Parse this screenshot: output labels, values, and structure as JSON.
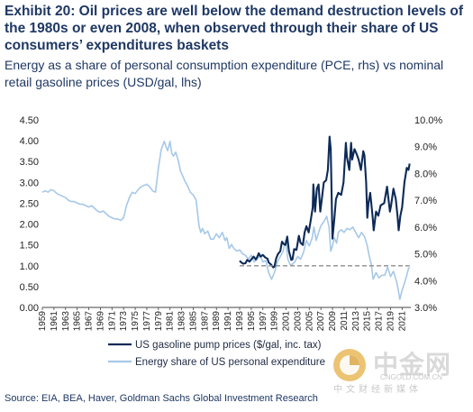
{
  "title": "Exhibit 20: Oil prices are well below the demand destruction levels of the 1980s or even 2008, when observed through their share of US consumers’ expenditures baskets",
  "subtitle": "Energy as a share of personal consumption expenditure (PCE, rhs) vs nominal retail gasoline prices (USD/gal, lhs)",
  "source": "Source: EIA, BEA, Haver, Goldman Sachs Global Investment Research",
  "watermark": {
    "name": "中金网",
    "url": "CNGOLD.COM.CN",
    "tagline": "中文财经新媒体"
  },
  "colors": {
    "gasoline": "#0d2a57",
    "energy_share": "#a6c8e8",
    "reference": "#8c8c8c",
    "title": "#1f3864"
  },
  "chart_data": {
    "type": "line",
    "x_axis": {
      "range": [
        1959,
        2022.5
      ],
      "ticks": [
        1959,
        1961,
        1963,
        1965,
        1967,
        1969,
        1971,
        1973,
        1975,
        1977,
        1979,
        1981,
        1983,
        1985,
        1987,
        1989,
        1991,
        1993,
        1995,
        1997,
        1999,
        2001,
        2003,
        2005,
        2007,
        2009,
        2011,
        2013,
        2015,
        2017,
        2019,
        2021
      ],
      "tick_labels": [
        "1959",
        "1961",
        "1963",
        "1965",
        "1967",
        "1969",
        "1971",
        "1973",
        "1975",
        "1977",
        "1979",
        "1981",
        "1983",
        "1985",
        "1987",
        "1989",
        "1991",
        "1993",
        "1995",
        "1997",
        "1999",
        "2001",
        "2003",
        "2005",
        "2007",
        "2009",
        "2011",
        "2013",
        "2015",
        "2017",
        "2019",
        "2021"
      ]
    },
    "y_left": {
      "range": [
        0,
        4.5
      ],
      "ticks": [
        0,
        0.5,
        1,
        1.5,
        2,
        2.5,
        3,
        3.5,
        4,
        4.5
      ],
      "tick_labels": [
        "0.00",
        "0.50",
        "1.00",
        "1.50",
        "2.00",
        "2.50",
        "3.00",
        "3.50",
        "4.00",
        "4.50"
      ]
    },
    "y_right": {
      "range": [
        3,
        10
      ],
      "ticks": [
        3,
        4,
        5,
        6,
        7,
        8,
        9,
        10
      ],
      "tick_labels": [
        "3.0%",
        "4.0%",
        "5.0%",
        "6.0%",
        "7.0%",
        "8.0%",
        "9.0%",
        "10.0%"
      ]
    },
    "grid": false,
    "legend": {
      "position": "bottom-left",
      "entries": [
        "US gasoline pump prices ($/gal, inc. tax)",
        "Energy share of US personal expenditure"
      ]
    },
    "series": [
      {
        "name": "US gasoline pump prices ($/gal, inc. tax)",
        "axis": "left",
        "x": [
          1993.0,
          1993.3,
          1993.6,
          1994.0,
          1994.3,
          1994.7,
          1995.0,
          1995.4,
          1995.8,
          1996.0,
          1996.3,
          1996.6,
          1997.0,
          1997.4,
          1997.8,
          1998.0,
          1998.4,
          1998.8,
          1999.0,
          1999.3,
          1999.6,
          2000.0,
          2000.3,
          2000.6,
          2000.9,
          2001.2,
          2001.5,
          2001.9,
          2002.1,
          2002.4,
          2002.8,
          2003.0,
          2003.2,
          2003.5,
          2003.9,
          2004.2,
          2004.5,
          2004.9,
          2005.2,
          2005.6,
          2005.7,
          2006.0,
          2006.3,
          2006.6,
          2006.9,
          2007.2,
          2007.5,
          2007.9,
          2008.2,
          2008.5,
          2008.7,
          2009.0,
          2009.3,
          2009.6,
          2010.0,
          2010.5,
          2010.9,
          2011.3,
          2011.5,
          2011.9,
          2012.2,
          2012.4,
          2012.8,
          2013.1,
          2013.5,
          2013.9,
          2014.3,
          2014.5,
          2014.8,
          2015.0,
          2015.2,
          2015.5,
          2015.9,
          2016.1,
          2016.5,
          2016.9,
          2017.3,
          2017.9,
          2018.4,
          2018.9,
          2019.1,
          2019.5,
          2019.9,
          2020.2,
          2020.4,
          2020.7,
          2021.0,
          2021.4,
          2021.8,
          2022.1,
          2022.3
        ],
        "values": [
          1.12,
          1.08,
          1.05,
          1.06,
          1.14,
          1.1,
          1.15,
          1.22,
          1.15,
          1.2,
          1.3,
          1.22,
          1.26,
          1.2,
          1.17,
          1.08,
          1.03,
          0.96,
          0.98,
          1.18,
          1.28,
          1.35,
          1.58,
          1.52,
          1.5,
          1.7,
          1.35,
          1.14,
          1.15,
          1.4,
          1.38,
          1.55,
          1.72,
          1.55,
          1.5,
          1.8,
          1.95,
          1.8,
          2.05,
          2.4,
          2.95,
          2.3,
          2.85,
          2.95,
          2.3,
          2.65,
          3.0,
          3.05,
          3.3,
          4.1,
          3.8,
          1.65,
          2.1,
          2.6,
          2.75,
          2.7,
          3.0,
          3.95,
          3.6,
          3.3,
          3.95,
          3.55,
          3.8,
          3.7,
          3.55,
          3.3,
          3.75,
          3.65,
          3.0,
          2.15,
          2.5,
          2.75,
          2.2,
          1.85,
          2.3,
          2.2,
          2.45,
          2.5,
          2.9,
          2.3,
          2.45,
          2.85,
          2.6,
          2.2,
          1.85,
          2.2,
          2.4,
          3.0,
          3.35,
          3.3,
          3.45
        ]
      },
      {
        "name": "Energy share of US personal expenditure",
        "axis": "right",
        "x": [
          1959.0,
          1959.5,
          1960.0,
          1960.5,
          1961.0,
          1961.5,
          1962.0,
          1962.5,
          1963.0,
          1963.5,
          1964.0,
          1964.5,
          1965.0,
          1965.5,
          1966.0,
          1966.5,
          1967.0,
          1967.5,
          1968.0,
          1968.5,
          1969.0,
          1969.5,
          1970.0,
          1970.5,
          1971.0,
          1971.5,
          1972.0,
          1972.5,
          1973.0,
          1973.5,
          1974.0,
          1974.5,
          1975.0,
          1975.5,
          1976.0,
          1976.5,
          1977.0,
          1977.5,
          1978.0,
          1978.5,
          1979.0,
          1979.5,
          1980.0,
          1980.3,
          1980.6,
          1981.0,
          1981.3,
          1981.6,
          1982.0,
          1982.4,
          1982.8,
          1983.2,
          1983.6,
          1984.0,
          1984.5,
          1985.0,
          1985.5,
          1986.0,
          1986.3,
          1986.6,
          1987.0,
          1987.5,
          1988.0,
          1988.5,
          1989.0,
          1989.5,
          1990.0,
          1990.5,
          1990.8,
          1991.2,
          1991.6,
          1992.0,
          1992.5,
          1993.0,
          1993.5,
          1994.0,
          1994.5,
          1995.0,
          1995.5,
          1996.0,
          1996.5,
          1997.0,
          1997.5,
          1998.0,
          1998.5,
          1999.0,
          1999.5,
          2000.0,
          2000.5,
          2000.9,
          2001.3,
          2001.7,
          2002.0,
          2002.5,
          2003.0,
          2003.5,
          2004.0,
          2004.5,
          2005.0,
          2005.5,
          2005.8,
          2006.2,
          2006.6,
          2007.0,
          2007.5,
          2008.0,
          2008.4,
          2008.7,
          2009.0,
          2009.3,
          2009.7,
          2010.0,
          2010.5,
          2011.0,
          2011.5,
          2012.0,
          2012.5,
          2013.0,
          2013.5,
          2014.0,
          2014.5,
          2015.0,
          2015.3,
          2015.7,
          2016.0,
          2016.5,
          2017.0,
          2017.5,
          2018.0,
          2018.5,
          2019.0,
          2019.5,
          2020.0,
          2020.3,
          2020.6,
          2021.0,
          2021.4,
          2021.8,
          2022.1,
          2022.3
        ],
        "values": [
          7.3,
          7.35,
          7.3,
          7.4,
          7.35,
          7.25,
          7.2,
          7.15,
          7.1,
          7.0,
          6.95,
          6.95,
          6.9,
          6.85,
          6.85,
          6.8,
          6.75,
          6.8,
          6.7,
          6.6,
          6.55,
          6.6,
          6.5,
          6.4,
          6.35,
          6.3,
          6.3,
          6.25,
          6.35,
          6.8,
          7.1,
          7.3,
          7.25,
          7.4,
          7.5,
          7.55,
          7.6,
          7.5,
          7.35,
          7.3,
          8.2,
          8.9,
          9.2,
          9.0,
          8.85,
          9.2,
          8.75,
          8.65,
          8.8,
          8.5,
          8.1,
          7.9,
          7.7,
          7.55,
          7.3,
          7.2,
          7.0,
          6.05,
          5.8,
          5.95,
          5.75,
          5.85,
          5.55,
          5.55,
          5.75,
          5.6,
          5.8,
          5.5,
          5.6,
          5.2,
          5.35,
          5.2,
          5.1,
          5.15,
          5.0,
          4.95,
          4.8,
          4.95,
          4.7,
          4.8,
          4.95,
          4.7,
          4.75,
          4.3,
          4.05,
          4.3,
          4.7,
          4.9,
          5.1,
          5.5,
          4.8,
          4.6,
          4.6,
          4.7,
          4.9,
          4.8,
          5.05,
          5.5,
          5.3,
          5.6,
          6.0,
          5.5,
          5.8,
          6.05,
          6.2,
          6.4,
          6.0,
          5.1,
          5.3,
          5.6,
          5.4,
          5.8,
          5.9,
          5.8,
          5.95,
          5.9,
          6.0,
          5.8,
          5.6,
          5.8,
          5.65,
          5.3,
          4.95,
          4.6,
          4.05,
          4.3,
          4.1,
          4.2,
          4.2,
          4.5,
          4.15,
          4.35,
          4.0,
          3.7,
          3.3,
          3.65,
          3.9,
          4.2,
          4.45,
          4.5
        ]
      }
    ],
    "reference_line": {
      "axis": "left",
      "value": 1.0,
      "x_range": [
        1993.0,
        2022.3
      ],
      "style": "dashed"
    }
  }
}
